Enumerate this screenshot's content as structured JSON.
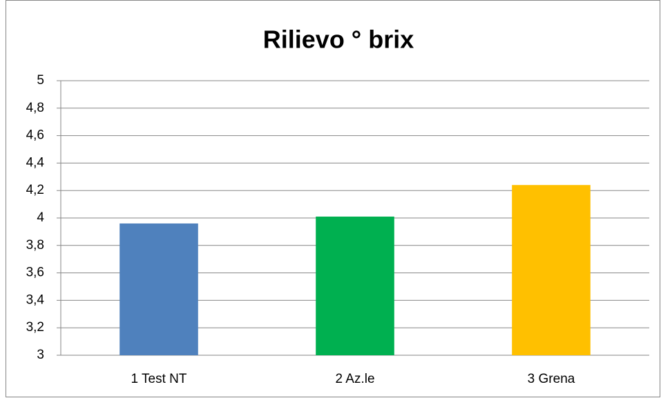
{
  "chart_data": {
    "type": "bar",
    "title": "Rilievo ° brix",
    "categories": [
      "1 Test NT",
      "2 Az.le",
      "3 Grena"
    ],
    "values": [
      3.96,
      4.01,
      4.24
    ],
    "colors": [
      "#4f81bd",
      "#00b050",
      "#ffc000"
    ],
    "ylim": [
      3,
      5
    ],
    "yticks": [
      3,
      {
        "value": 3.2,
        "label": "3,2"
      },
      {
        "value": 3.4,
        "label": "3,4"
      },
      {
        "value": 3.6,
        "label": "3,6"
      },
      {
        "value": 3.8,
        "label": "3,8"
      },
      4,
      {
        "value": 4.2,
        "label": "4,2"
      },
      {
        "value": 4.4,
        "label": "4,4"
      },
      {
        "value": 4.6,
        "label": "4,6"
      },
      {
        "value": 4.8,
        "label": "4,8"
      },
      5
    ],
    "grid": true
  }
}
